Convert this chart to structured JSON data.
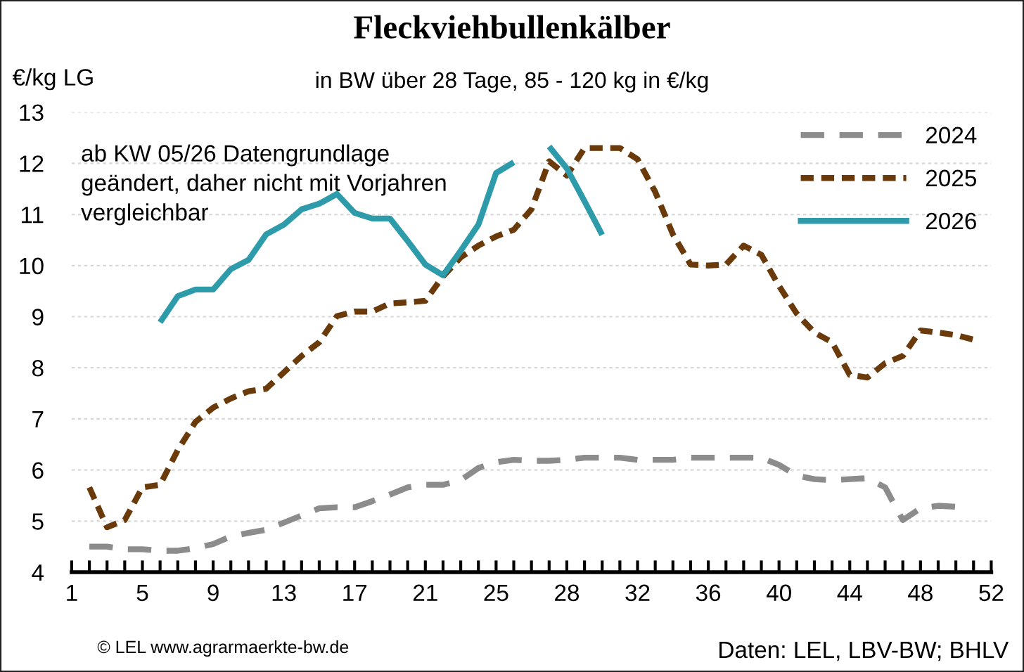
{
  "chart_data": {
    "type": "line",
    "title": "Fleckviehbullenkälber",
    "subtitle": "in BW über 28 Tage, 85 - 120 kg in €/kg",
    "ylabel": "€/kg LG",
    "categories": [
      "1",
      null,
      null,
      null,
      "5",
      null,
      null,
      null,
      "9",
      null,
      null,
      null,
      "13",
      null,
      null,
      null,
      "17",
      null,
      null,
      null,
      "21",
      null,
      null,
      null,
      "25",
      null,
      null,
      null,
      "28",
      null,
      null,
      null,
      "32",
      null,
      null,
      null,
      "36",
      null,
      null,
      null,
      "40",
      null,
      null,
      null,
      "44",
      null,
      null,
      null,
      "48",
      null,
      null,
      null,
      "52"
    ],
    "series": [
      {
        "name": "2024",
        "color": "#8c8c8c",
        "line_style": "dashed",
        "values": [
          null,
          4.5,
          4.5,
          4.45,
          4.45,
          4.42,
          4.42,
          4.47,
          4.55,
          4.7,
          4.77,
          4.83,
          4.97,
          5.11,
          5.25,
          5.27,
          5.27,
          5.39,
          5.52,
          5.66,
          5.71,
          5.71,
          5.8,
          6.04,
          6.15,
          6.2,
          6.18,
          6.18,
          6.2,
          6.24,
          6.24,
          6.24,
          6.2,
          6.2,
          6.2,
          6.24,
          6.24,
          6.24,
          6.24,
          6.24,
          6.1,
          5.89,
          5.82,
          5.8,
          5.82,
          5.84,
          5.66,
          5.02,
          5.25,
          5.3,
          5.28,
          null,
          null
        ]
      },
      {
        "name": "2025",
        "color": "#6b3a0a",
        "line_style": "dotted",
        "values": [
          null,
          5.66,
          4.88,
          5.02,
          5.66,
          5.71,
          6.39,
          6.94,
          7.22,
          7.4,
          7.54,
          7.59,
          7.91,
          8.23,
          8.5,
          9.01,
          9.1,
          9.1,
          9.26,
          9.28,
          9.31,
          9.79,
          10.16,
          10.39,
          10.57,
          10.7,
          11.1,
          12.04,
          11.76,
          12.3,
          12.3,
          12.3,
          12.08,
          11.44,
          10.61,
          10.02,
          10.0,
          10.02,
          10.39,
          10.21,
          9.6,
          9.06,
          8.69,
          8.5,
          7.86,
          7.81,
          8.09,
          8.23,
          8.73,
          8.69,
          8.64,
          8.55,
          null
        ]
      },
      {
        "name": "2026",
        "color": "#2e9bab",
        "line_style": "solid",
        "values": [
          null,
          null,
          null,
          null,
          null,
          8.89,
          9.4,
          9.53,
          9.53,
          9.93,
          10.11,
          10.61,
          10.8,
          11.1,
          11.21,
          11.4,
          11.03,
          10.92,
          10.92,
          10.48,
          10.02,
          9.81,
          10.29,
          10.8,
          11.81,
          12.02,
          null,
          12.33,
          11.9,
          11.26,
          10.6,
          null,
          null,
          null,
          null,
          null,
          null,
          null,
          null,
          null,
          null,
          null,
          null,
          null,
          null,
          null,
          null,
          null,
          null,
          null,
          null,
          null,
          null
        ]
      }
    ],
    "ylim": [
      4,
      13
    ],
    "yticks": [
      4,
      5,
      6,
      7,
      8,
      9,
      10,
      11,
      12,
      13
    ],
    "grid": "y",
    "legend": "top right",
    "marker": "none",
    "annotations": [
      {
        "text": "ab KW 05/26 Datengrundlage\ngeändert, daher nicht mit Vorjahren\nvergleichbar"
      },
      "© LEL www.agrarmaerkte-bw.de",
      "Daten: LEL, LBV-BW; BHLV"
    ]
  }
}
